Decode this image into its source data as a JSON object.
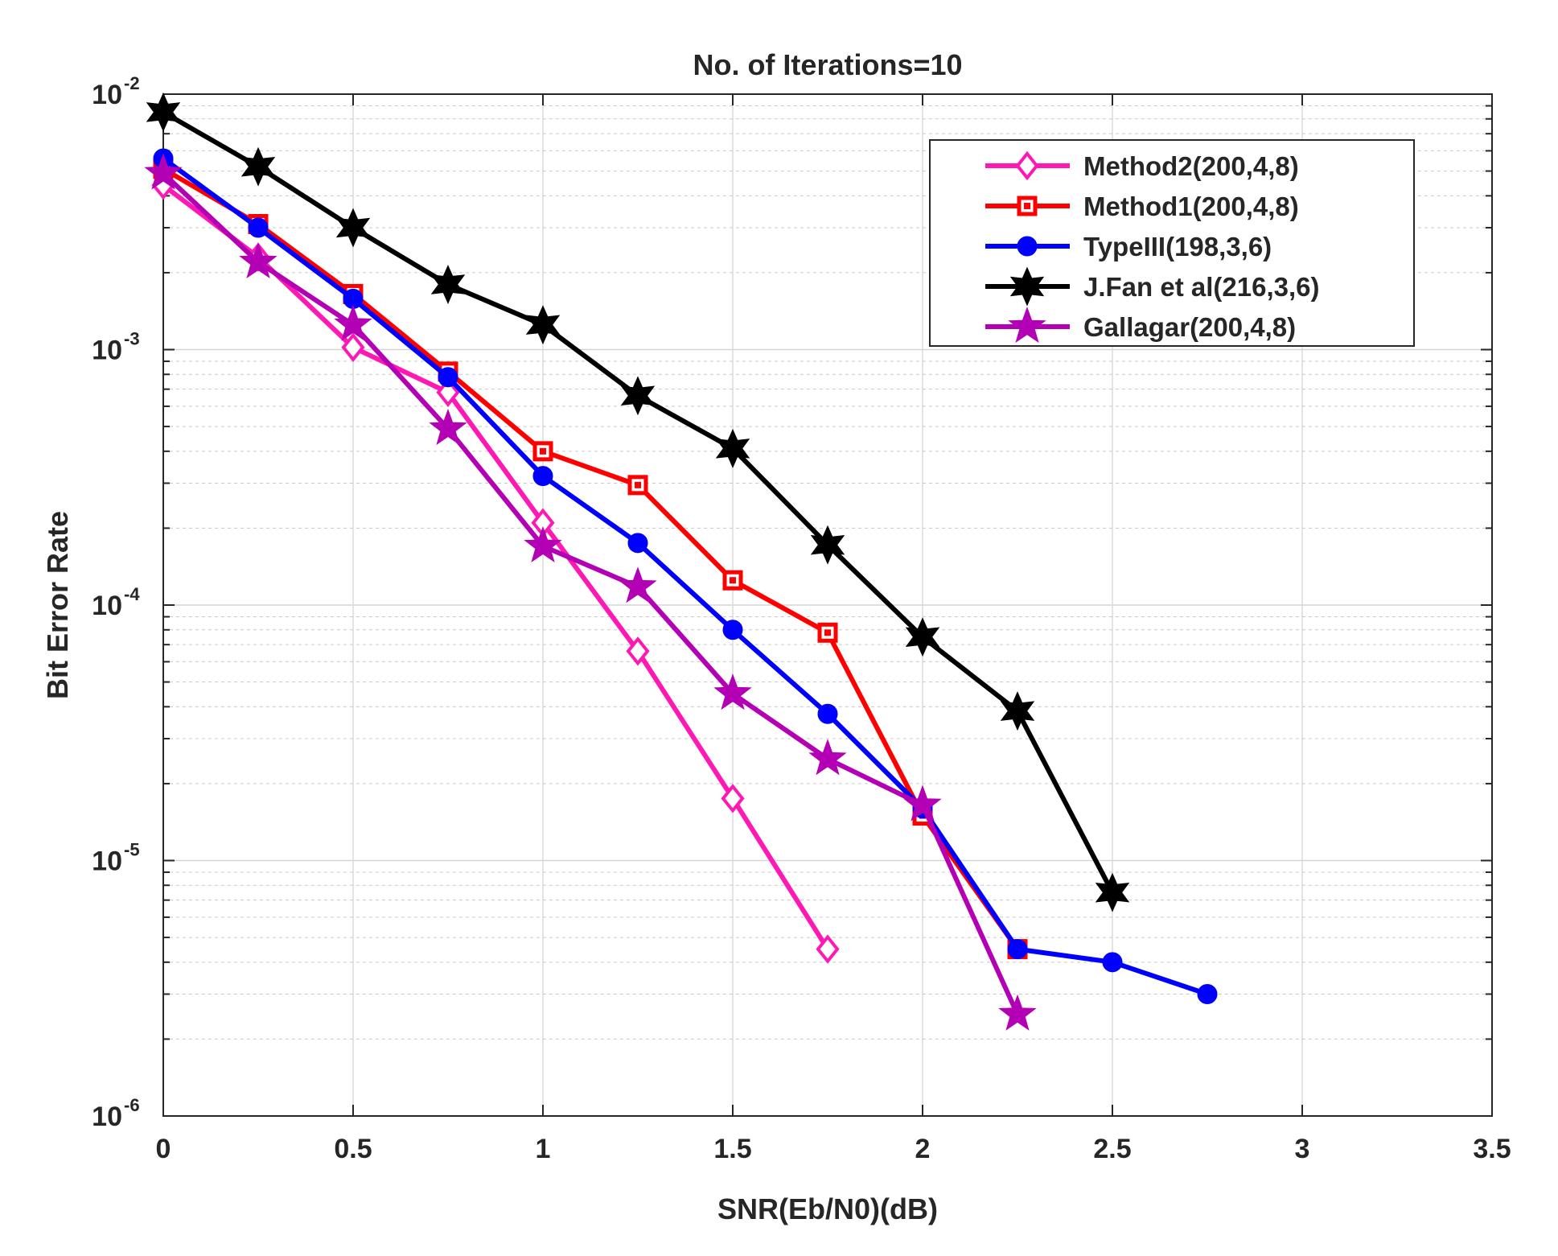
{
  "chart_data": {
    "type": "line",
    "title": "No. of Iterations=10",
    "xlabel": "SNR(Eb/N0)(dB)",
    "ylabel": "Bit Error Rate",
    "xlim": [
      0,
      3.5
    ],
    "ylim": [
      1e-06,
      0.01
    ],
    "yscale": "log",
    "grid": true,
    "legend_position": "top-right",
    "x_ticks": [
      {
        "value": 0,
        "label": "0"
      },
      {
        "value": 0.5,
        "label": "0.5"
      },
      {
        "value": 1,
        "label": "1"
      },
      {
        "value": 1.5,
        "label": "1.5"
      },
      {
        "value": 2,
        "label": "2"
      },
      {
        "value": 2.5,
        "label": "2.5"
      },
      {
        "value": 3,
        "label": "3"
      },
      {
        "value": 3.5,
        "label": "3.5"
      }
    ],
    "y_ticks": [
      {
        "exp": -2,
        "base": "10",
        "sup": "-2"
      },
      {
        "exp": -3,
        "base": "10",
        "sup": "-3"
      },
      {
        "exp": -4,
        "base": "10",
        "sup": "-4"
      },
      {
        "exp": -5,
        "base": "10",
        "sup": "-5"
      },
      {
        "exp": -6,
        "base": "10",
        "sup": "-6"
      }
    ],
    "series": [
      {
        "name": "Method2(200,4,8)",
        "color": "#ff19b4",
        "marker": "diamond",
        "filled": false,
        "x": [
          0,
          0.25,
          0.5,
          0.75,
          1,
          1.25,
          1.5,
          1.75
        ],
        "y": [
          0.0044,
          0.0023,
          0.00102,
          0.00068,
          0.00021,
          6.6e-05,
          1.75e-05,
          4.5e-06
        ]
      },
      {
        "name": "Method1(200,4,8)",
        "color": "#ff0000",
        "marker": "square",
        "filled": false,
        "x": [
          0,
          0.25,
          0.5,
          0.75,
          1,
          1.25,
          1.5,
          1.75,
          2,
          2.25
        ],
        "y": [
          0.0051,
          0.0031,
          0.00165,
          0.00082,
          0.0004,
          0.000295,
          0.000125,
          7.8e-05,
          1.5e-05,
          4.5e-06
        ]
      },
      {
        "name": "TypeIII(198,3,6)",
        "color": "#0000ff",
        "marker": "circle",
        "filled": true,
        "x": [
          0,
          0.25,
          0.5,
          0.75,
          1,
          1.25,
          1.5,
          1.75,
          2,
          2.25,
          2.5,
          2.75
        ],
        "y": [
          0.0056,
          0.003,
          0.00158,
          0.00078,
          0.00032,
          0.000175,
          8e-05,
          3.75e-05,
          1.6e-05,
          4.5e-06,
          4e-06,
          3e-06
        ]
      },
      {
        "name": "J.Fan et al(216,3,6)",
        "color": "#000000",
        "marker": "hexagram",
        "filled": true,
        "x": [
          0,
          0.25,
          0.5,
          0.75,
          1,
          1.25,
          1.5,
          1.75,
          2,
          2.25,
          2.5
        ],
        "y": [
          0.0085,
          0.0052,
          0.003,
          0.0018,
          0.00125,
          0.00066,
          0.00041,
          0.000172,
          7.5e-05,
          3.85e-05,
          7.5e-06
        ]
      },
      {
        "name": "Gallagar(200,4,8)",
        "color": "#b400b4",
        "marker": "pentagram",
        "filled": true,
        "x": [
          0,
          0.25,
          0.5,
          0.75,
          1,
          1.25,
          1.5,
          1.75,
          2,
          2.25
        ],
        "y": [
          0.0049,
          0.0022,
          0.00125,
          0.00049,
          0.00017,
          0.000118,
          4.5e-05,
          2.5e-05,
          1.65e-05,
          2.5e-06
        ]
      }
    ]
  }
}
